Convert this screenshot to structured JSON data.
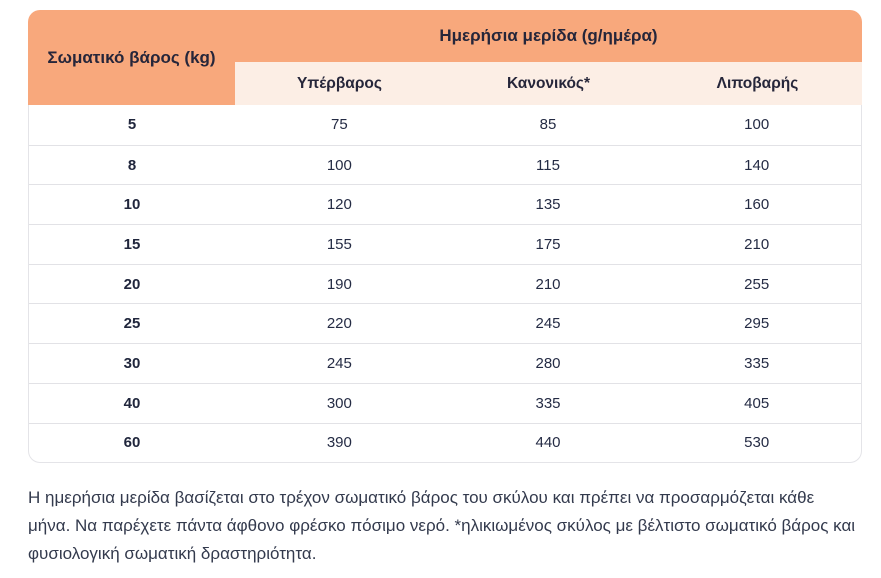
{
  "colors": {
    "header_orange": "#f8a87c",
    "subheader_pink": "#fceee5",
    "text_dark": "#26263a",
    "row_border": "#e2e2e6"
  },
  "table": {
    "weight_header": "Σωματικό βάρος (kg)",
    "portion_header": "Ημερήσια μερίδα (g/ημέρα)",
    "sub_headers": [
      "Υπέρβαρος",
      "Κανονικός*",
      "Λιποβαρής"
    ],
    "rows": [
      {
        "weight": "5",
        "values": [
          "75",
          "85",
          "100"
        ]
      },
      {
        "weight": "8",
        "values": [
          "100",
          "115",
          "140"
        ]
      },
      {
        "weight": "10",
        "values": [
          "120",
          "135",
          "160"
        ]
      },
      {
        "weight": "15",
        "values": [
          "155",
          "175",
          "210"
        ]
      },
      {
        "weight": "20",
        "values": [
          "190",
          "210",
          "255"
        ]
      },
      {
        "weight": "25",
        "values": [
          "220",
          "245",
          "295"
        ]
      },
      {
        "weight": "30",
        "values": [
          "245",
          "280",
          "335"
        ]
      },
      {
        "weight": "40",
        "values": [
          "300",
          "335",
          "405"
        ]
      },
      {
        "weight": "60",
        "values": [
          "390",
          "440",
          "530"
        ]
      }
    ]
  },
  "footer_note": "Η ημερήσια μερίδα βασίζεται στο τρέχον σωματικό βάρος του σκύλου και πρέπει να προσαρμόζεται κάθε μήνα. Να παρέχετε πάντα άφθονο φρέσκο πόσιμο νερό. *ηλικιωμένος σκύλος με βέλτιστο σωματικό βάρος και φυσιολογική σωματική δραστηριότητα."
}
